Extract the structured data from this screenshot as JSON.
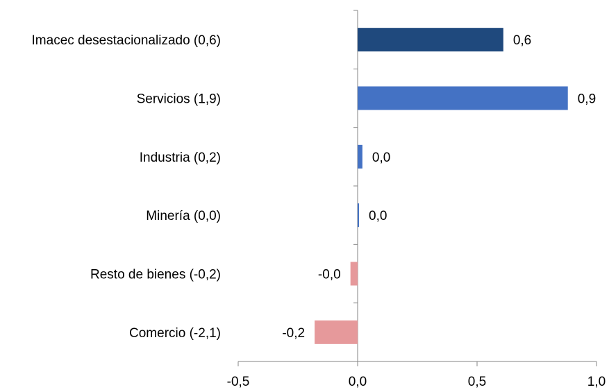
{
  "chart_data": {
    "type": "bar",
    "orientation": "horizontal",
    "title": "",
    "xlabel": "",
    "ylabel": "",
    "xlim": [
      -0.5,
      1.0
    ],
    "x_ticks": [
      -0.5,
      0.0,
      0.5,
      1.0
    ],
    "x_tick_labels": [
      "-0,5",
      "0,0",
      "0,5",
      "1,0"
    ],
    "grid": false,
    "legend": "none",
    "categories": [
      "Imacec desestacionalizado (0,6)",
      "Servicios (1,9)",
      "Industria (0,2)",
      "Minería (0,0)",
      "Resto de bienes (-0,2)",
      "Comercio (-2,1)"
    ],
    "values": [
      0.61,
      0.88,
      0.02,
      0.005,
      -0.03,
      -0.18
    ],
    "data_labels": [
      "0,6",
      "0,9",
      "0,0",
      "0,0",
      "-0,0",
      "-0,2"
    ],
    "colors": [
      "#1F497D",
      "#4472C4",
      "#4472C4",
      "#4472C4",
      "#E6999B",
      "#E6999B"
    ]
  }
}
